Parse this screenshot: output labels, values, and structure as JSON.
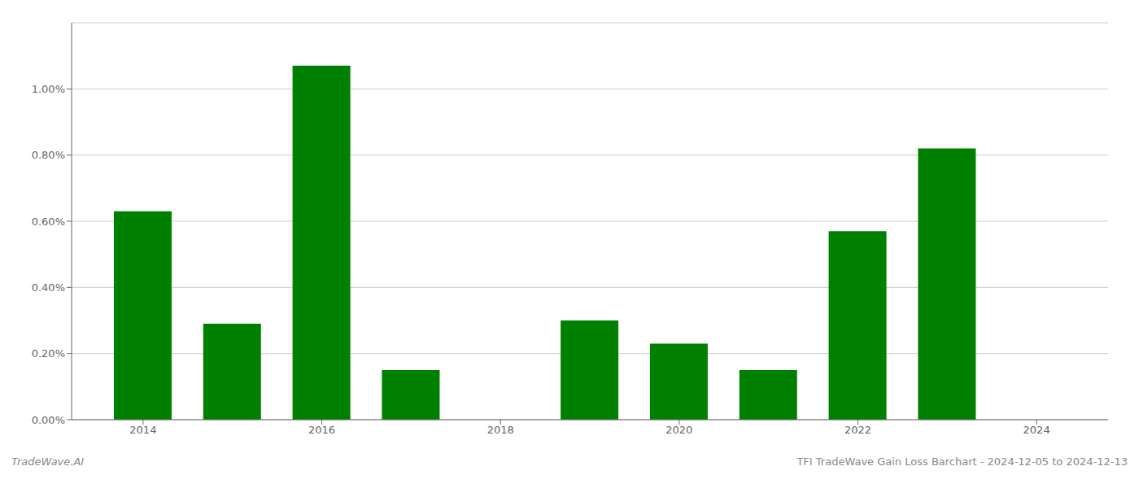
{
  "chart_data": {
    "type": "bar",
    "x": [
      2014,
      2015,
      2016,
      2017,
      2018,
      2019,
      2020,
      2021,
      2022,
      2023
    ],
    "values": [
      0.0063,
      0.0029,
      0.0107,
      0.0015,
      0.0,
      0.003,
      0.0023,
      0.0015,
      0.0057,
      0.0082
    ],
    "color": "#008000",
    "xlim": [
      2013.2,
      2024.8
    ],
    "xticks": [
      2014,
      2016,
      2018,
      2020,
      2022,
      2024
    ],
    "ylim": [
      0,
      0.012
    ],
    "yticks": [
      {
        "value": 0.0,
        "label": "0.00%"
      },
      {
        "value": 0.002,
        "label": "0.20%"
      },
      {
        "value": 0.004,
        "label": "0.40%"
      },
      {
        "value": 0.006,
        "label": "0.60%"
      },
      {
        "value": 0.008,
        "label": "0.80%"
      },
      {
        "value": 0.01,
        "label": "1.00%"
      }
    ],
    "grid": true,
    "annotations": [
      "TradeWave.AI",
      "TFI TradeWave Gain Loss Barchart - 2024-12-05 to 2024-12-13"
    ]
  }
}
